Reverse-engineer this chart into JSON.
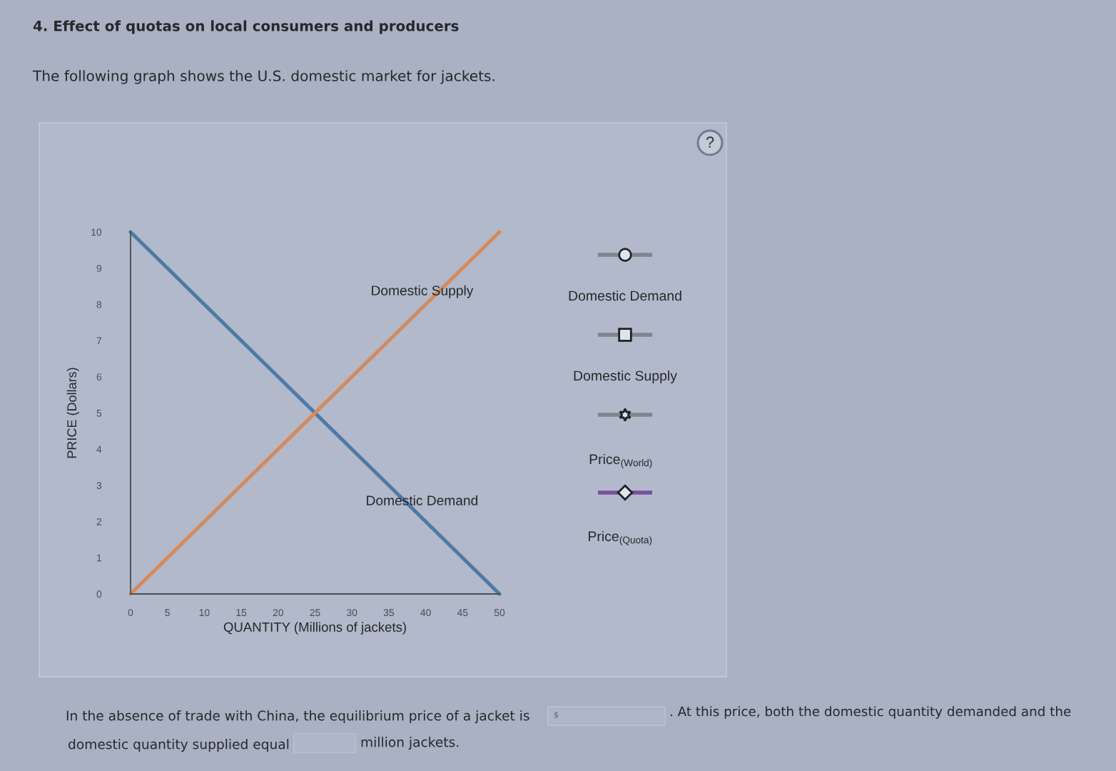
{
  "chart_data": {
    "type": "line",
    "title": "4. Effect of quotas on local consumers and producers",
    "subtitle": "The following graph shows the U.S. domestic market for jackets.",
    "xlabel": "QUANTITY (Millions of jackets)",
    "ylabel": "PRICE (Dollars)",
    "x": [
      0,
      50
    ],
    "series": [
      {
        "name": "Domestic Demand",
        "color": "#4d7aa6",
        "values": [
          10,
          0
        ]
      },
      {
        "name": "Domestic Supply",
        "color": "#d58a5c",
        "values": [
          0,
          10
        ]
      }
    ],
    "xlim": [
      0,
      50
    ],
    "ylim": [
      0,
      10
    ],
    "xticks": [
      0,
      5,
      10,
      15,
      20,
      25,
      30,
      35,
      40,
      45,
      50
    ],
    "yticks": [
      0,
      1,
      2,
      3,
      4,
      5,
      6,
      7,
      8,
      9,
      10
    ],
    "grid": false,
    "annotations": [
      "Domestic Demand",
      "Domestic Supply",
      "Price$_{(World)}$",
      "Price$_{(Quota)}$",
      "?",
      "In the absence of trade with China, the equilibrium price of a jacket is",
      "$",
      ". At this price, both the domestic quantity demanded and the",
      "domestic quantity supplied equal",
      "million jackets."
    ]
  }
}
